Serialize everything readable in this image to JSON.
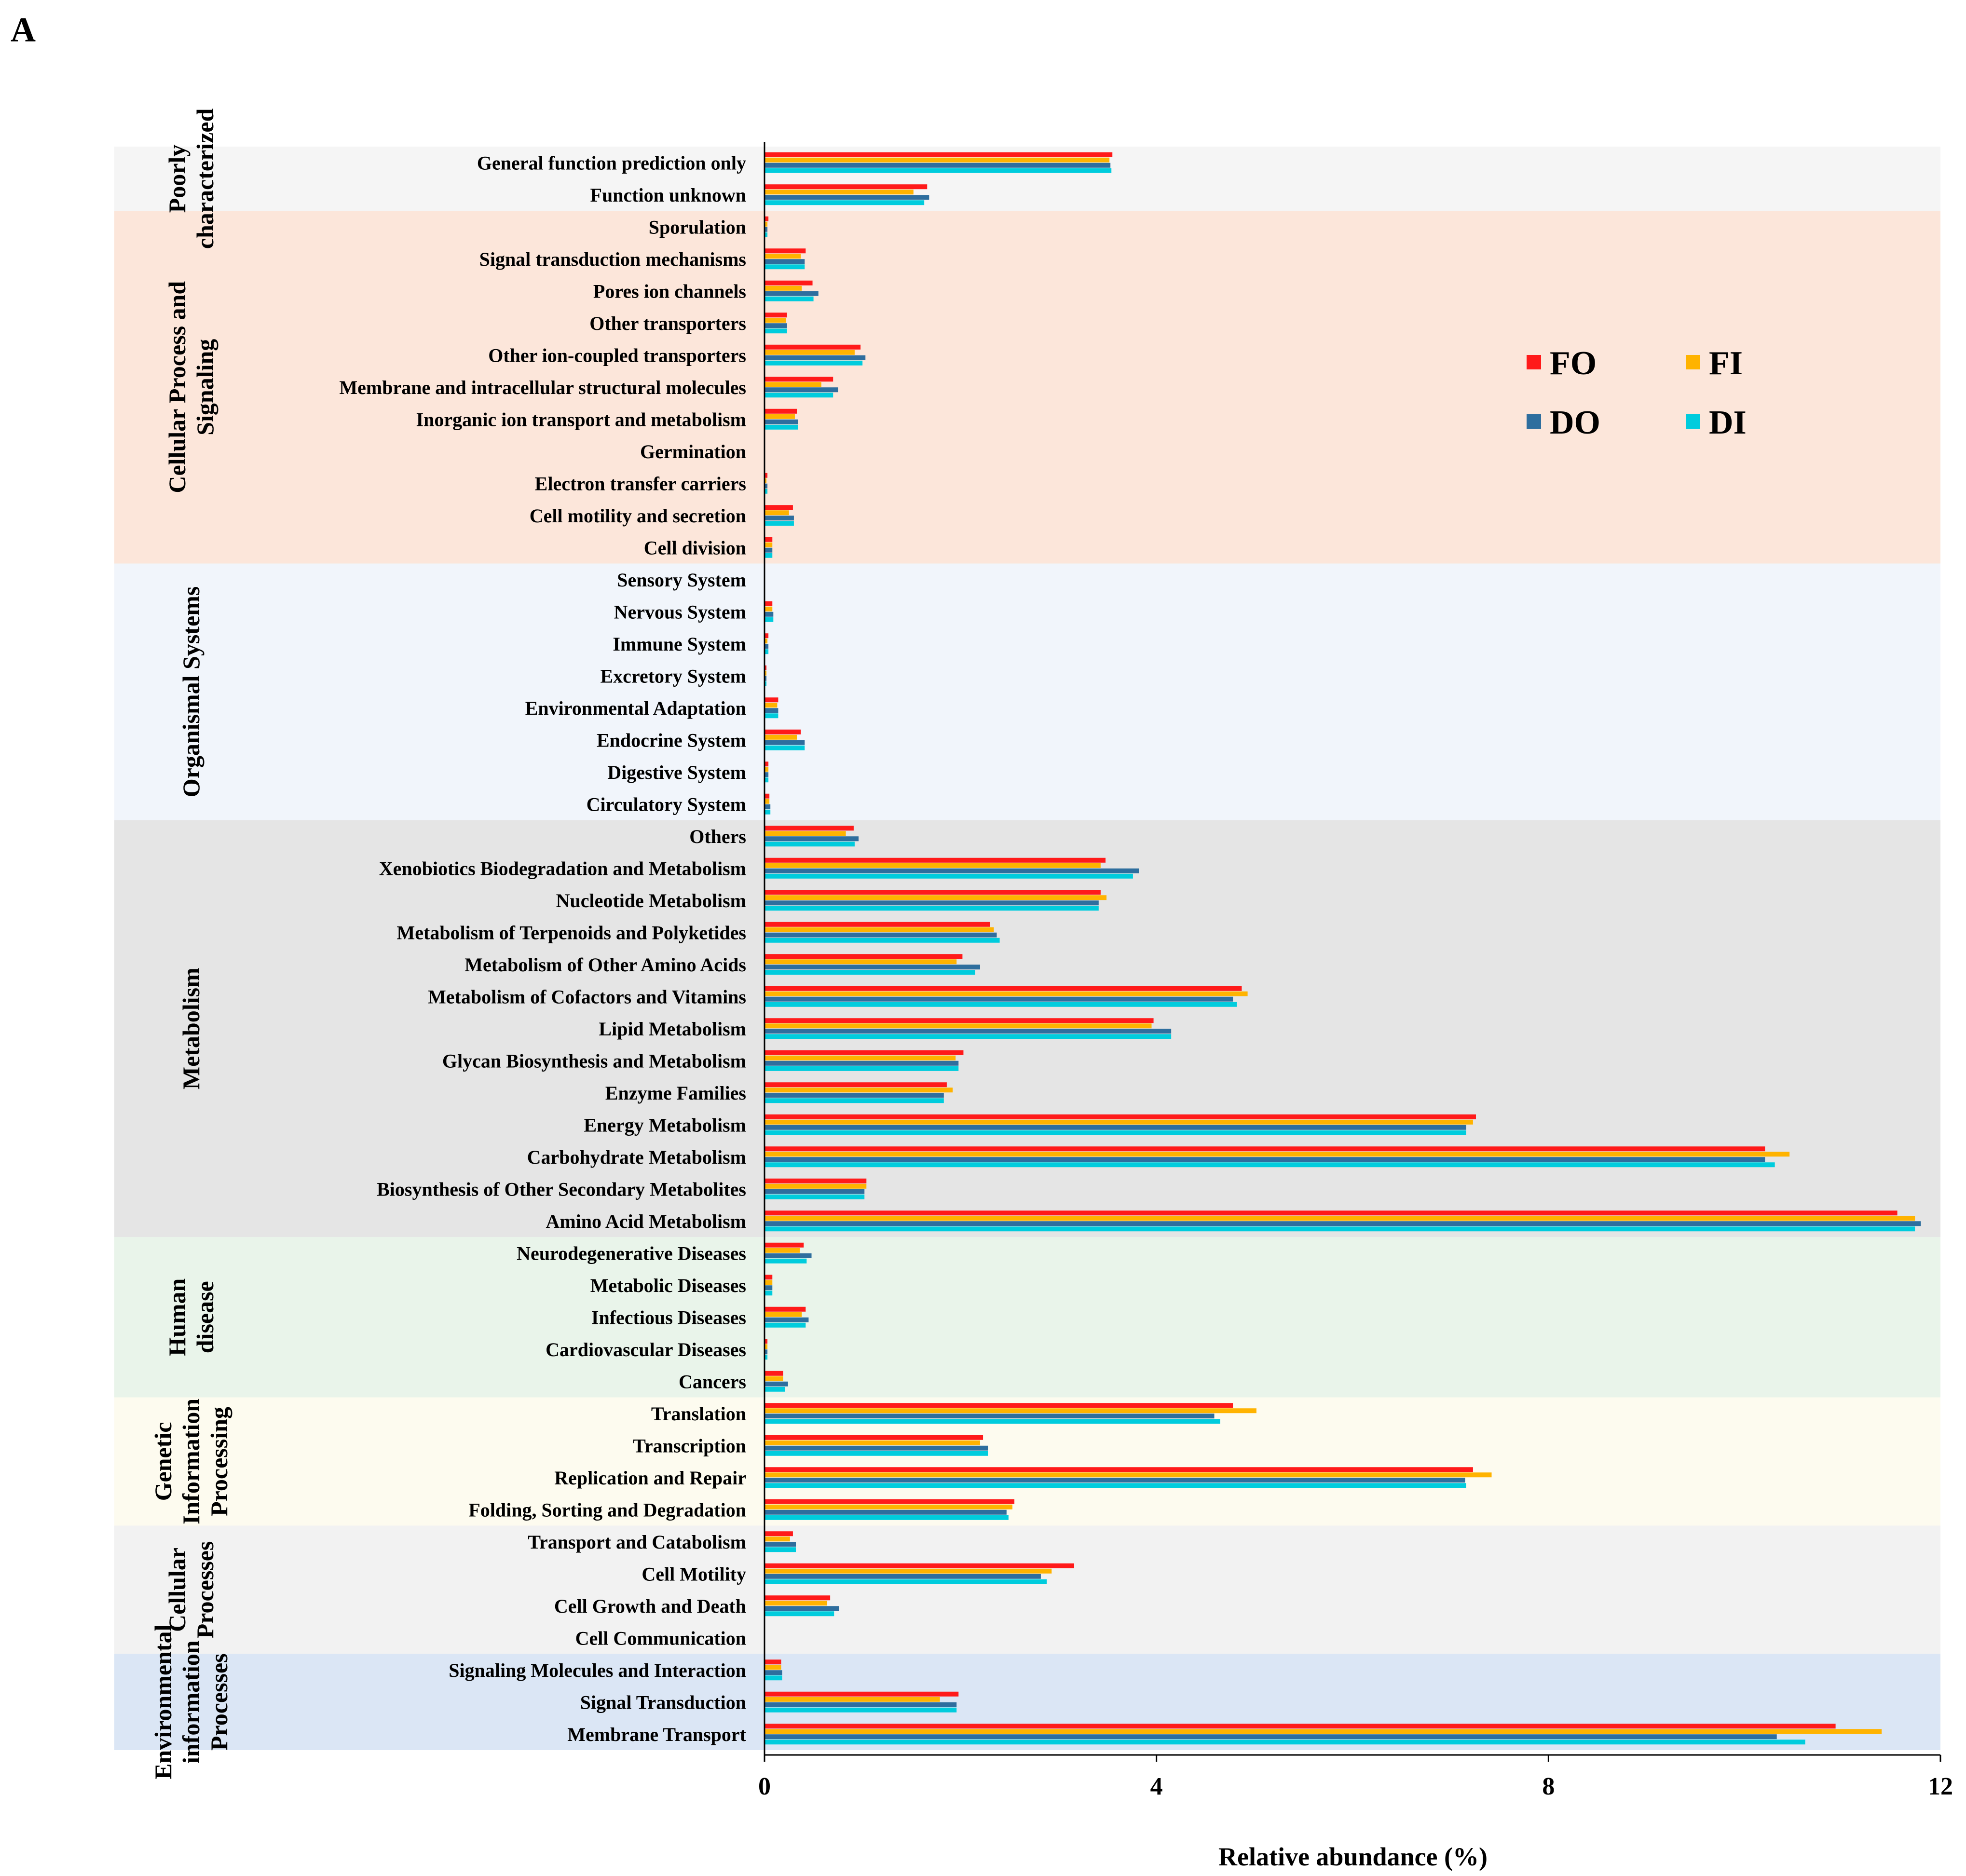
{
  "panel_label": "A",
  "chart_data": {
    "type": "bar",
    "orientation": "horizontal",
    "title": "",
    "xlabel": "Relative abundance (%)",
    "ylabel": "",
    "xlim": [
      0,
      12
    ],
    "xticks": [
      0,
      4,
      8,
      12
    ],
    "series_names": [
      "FO",
      "FI",
      "DO",
      "DI"
    ],
    "series_colors": [
      "#ff1a1a",
      "#ffb300",
      "#2e6e9e",
      "#00ccdd"
    ],
    "legend": {
      "position": "upper-right",
      "labels": [
        "FO",
        "FI",
        "DO",
        "DI"
      ]
    },
    "groups": [
      {
        "name": "Poorly characterized",
        "color": "#f5f5f5",
        "categories": [
          {
            "name": "General function prediction only",
            "values": [
              3.55,
              3.52,
              3.53,
              3.54
            ]
          },
          {
            "name": "Function unknown",
            "values": [
              1.66,
              1.52,
              1.68,
              1.63
            ]
          }
        ]
      },
      {
        "name": "Cellular Process and Signaling",
        "color": "#fce6da",
        "categories": [
          {
            "name": "Sporulation",
            "values": [
              0.04,
              0.03,
              0.03,
              0.03
            ]
          },
          {
            "name": "Signal transduction mechanisms",
            "values": [
              0.42,
              0.37,
              0.41,
              0.41
            ]
          },
          {
            "name": "Pores ion channels",
            "values": [
              0.49,
              0.38,
              0.55,
              0.5
            ]
          },
          {
            "name": "Other transporters",
            "values": [
              0.23,
              0.22,
              0.23,
              0.23
            ]
          },
          {
            "name": "Other ion-coupled transporters",
            "values": [
              0.98,
              0.92,
              1.03,
              1.0
            ]
          },
          {
            "name": "Membrane and intracellular structural molecules",
            "values": [
              0.7,
              0.58,
              0.75,
              0.7
            ]
          },
          {
            "name": "Inorganic ion transport and metabolism",
            "values": [
              0.33,
              0.31,
              0.34,
              0.34
            ]
          },
          {
            "name": "Germination",
            "values": [
              0.0,
              0.0,
              0.0,
              0.0
            ]
          },
          {
            "name": "Electron transfer carriers",
            "values": [
              0.03,
              0.02,
              0.03,
              0.03
            ]
          },
          {
            "name": "Cell motility and secretion",
            "values": [
              0.29,
              0.25,
              0.3,
              0.3
            ]
          },
          {
            "name": "Cell division",
            "values": [
              0.08,
              0.08,
              0.08,
              0.08
            ]
          }
        ]
      },
      {
        "name": "Organismal Systems",
        "color": "#f1f5fb",
        "categories": [
          {
            "name": "Sensory System",
            "values": [
              0.0,
              0.0,
              0.0,
              0.0
            ]
          },
          {
            "name": "Nervous System",
            "values": [
              0.08,
              0.08,
              0.09,
              0.09
            ]
          },
          {
            "name": "Immune System",
            "values": [
              0.04,
              0.03,
              0.04,
              0.04
            ]
          },
          {
            "name": "Excretory System",
            "values": [
              0.02,
              0.02,
              0.02,
              0.02
            ]
          },
          {
            "name": "Environmental Adaptation",
            "values": [
              0.14,
              0.13,
              0.14,
              0.14
            ]
          },
          {
            "name": "Endocrine System",
            "values": [
              0.37,
              0.33,
              0.41,
              0.41
            ]
          },
          {
            "name": "Digestive System",
            "values": [
              0.04,
              0.04,
              0.04,
              0.04
            ]
          },
          {
            "name": "Circulatory System",
            "values": [
              0.05,
              0.05,
              0.06,
              0.06
            ]
          }
        ]
      },
      {
        "name": "Metabolism",
        "color": "#e5e5e5",
        "categories": [
          {
            "name": "Others",
            "values": [
              0.91,
              0.83,
              0.96,
              0.92
            ]
          },
          {
            "name": "Xenobiotics Biodegradation and Metabolism",
            "values": [
              3.48,
              3.43,
              3.82,
              3.76
            ]
          },
          {
            "name": "Nucleotide Metabolism",
            "values": [
              3.43,
              3.49,
              3.41,
              3.41
            ]
          },
          {
            "name": "Metabolism of Terpenoids and Polyketides",
            "values": [
              2.3,
              2.34,
              2.37,
              2.4
            ]
          },
          {
            "name": "Metabolism of Other Amino Acids",
            "values": [
              2.02,
              1.96,
              2.2,
              2.15
            ]
          },
          {
            "name": "Metabolism of Cofactors and Vitamins",
            "values": [
              4.87,
              4.93,
              4.78,
              4.82
            ]
          },
          {
            "name": "Lipid Metabolism",
            "values": [
              3.97,
              3.95,
              4.15,
              4.15
            ]
          },
          {
            "name": "Glycan Biosynthesis and Metabolism",
            "values": [
              2.03,
              1.95,
              1.98,
              1.98
            ]
          },
          {
            "name": "Enzyme Families",
            "values": [
              1.86,
              1.92,
              1.83,
              1.83
            ]
          },
          {
            "name": "Energy Metabolism",
            "values": [
              7.26,
              7.23,
              7.16,
              7.16
            ]
          },
          {
            "name": "Carbohydrate Metabolism",
            "values": [
              10.21,
              10.46,
              10.21,
              10.31
            ]
          },
          {
            "name": "Biosynthesis of Other Secondary Metabolites",
            "values": [
              1.04,
              1.04,
              1.02,
              1.02
            ]
          },
          {
            "name": "Amino Acid Metabolism",
            "values": [
              11.56,
              11.74,
              11.8,
              11.74
            ]
          }
        ]
      },
      {
        "name": "Human disease",
        "color": "#e9f4ea",
        "categories": [
          {
            "name": "Neurodegenerative Diseases",
            "values": [
              0.4,
              0.36,
              0.48,
              0.43
            ]
          },
          {
            "name": "Metabolic Diseases",
            "values": [
              0.08,
              0.08,
              0.08,
              0.08
            ]
          },
          {
            "name": "Infectious Diseases",
            "values": [
              0.42,
              0.38,
              0.45,
              0.42
            ]
          },
          {
            "name": "Cardiovascular Diseases",
            "values": [
              0.03,
              0.03,
              0.03,
              0.03
            ]
          },
          {
            "name": "Cancers",
            "values": [
              0.19,
              0.19,
              0.24,
              0.21
            ]
          }
        ]
      },
      {
        "name": "Genetic Information Processing",
        "color": "#fdfbef",
        "categories": [
          {
            "name": "Translation",
            "values": [
              4.78,
              5.02,
              4.59,
              4.65
            ]
          },
          {
            "name": "Transcription",
            "values": [
              2.23,
              2.2,
              2.28,
              2.28
            ]
          },
          {
            "name": "Replication and Repair",
            "values": [
              7.23,
              7.42,
              7.15,
              7.16
            ]
          },
          {
            "name": "Folding, Sorting and Degradation",
            "values": [
              2.55,
              2.53,
              2.47,
              2.49
            ]
          }
        ]
      },
      {
        "name": "Cellular Processes",
        "color": "#f2f2f2",
        "categories": [
          {
            "name": "Transport and Catabolism",
            "values": [
              0.29,
              0.26,
              0.32,
              0.32
            ]
          },
          {
            "name": "Cell Motility",
            "values": [
              3.16,
              2.93,
              2.82,
              2.88
            ]
          },
          {
            "name": "Cell Growth and Death",
            "values": [
              0.67,
              0.64,
              0.76,
              0.71
            ]
          },
          {
            "name": "Cell Communication",
            "values": [
              0.0,
              0.0,
              0.0,
              0.0
            ]
          }
        ]
      },
      {
        "name": "Environmental information Processes",
        "color": "#dbe6f5",
        "categories": [
          {
            "name": "Signaling Molecules and Interaction",
            "values": [
              0.17,
              0.17,
              0.18,
              0.18
            ]
          },
          {
            "name": "Signal Transduction",
            "values": [
              1.98,
              1.79,
              1.96,
              1.96
            ]
          },
          {
            "name": "Membrane Transport",
            "values": [
              10.93,
              11.4,
              10.33,
              10.62
            ]
          }
        ]
      }
    ]
  }
}
